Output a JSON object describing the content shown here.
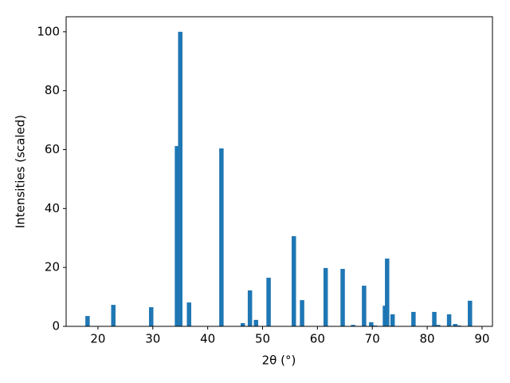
{
  "chart_data": {
    "type": "bar",
    "xlabel": "2θ (°)",
    "ylabel": "Intensities (scaled)",
    "x": [
      18.1,
      22.8,
      29.7,
      34.4,
      35.0,
      36.6,
      42.5,
      46.4,
      47.7,
      48.8,
      51.1,
      55.7,
      57.2,
      61.5,
      64.6,
      66.5,
      68.5,
      69.8,
      70.5,
      72.3,
      72.7,
      73.7,
      77.5,
      81.3,
      82.0,
      84.0,
      85.1,
      85.8,
      87.8
    ],
    "values": [
      3.5,
      7.3,
      6.5,
      61.2,
      100,
      8.1,
      60.4,
      1.1,
      12.2,
      2.2,
      16.5,
      30.6,
      8.9,
      19.8,
      19.5,
      0.5,
      13.8,
      1.4,
      0.3,
      7.0,
      23.0,
      4.1,
      4.9,
      4.9,
      0.5,
      4.1,
      0.8,
      0.3,
      8.7
    ],
    "color": "#1f77b4",
    "xlim": [
      14.2,
      91.9
    ],
    "ylim": [
      0,
      105.1
    ],
    "xticks": [
      20,
      30,
      40,
      50,
      60,
      70,
      80,
      90
    ],
    "yticks": [
      0,
      20,
      40,
      60,
      80,
      100
    ]
  }
}
